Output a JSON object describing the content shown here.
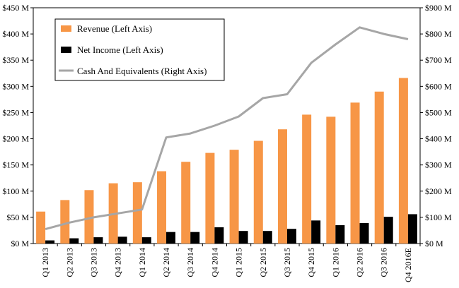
{
  "chart_data": {
    "type": "bar",
    "categories": [
      "Q1 2013",
      "Q2 2013",
      "Q3 2013",
      "Q4 2013",
      "Q1 2014",
      "Q2 2014",
      "Q3 2014",
      "Q4 2014",
      "Q1 2015",
      "Q2 2015",
      "Q3 2015",
      "Q4 2015",
      "Q1 2016",
      "Q2 2016",
      "Q3 2016",
      "Q4 2016E"
    ],
    "series": [
      {
        "name": "Revenue (Left Axis)",
        "kind": "bar",
        "axis": "left",
        "color": "#F79646",
        "values": [
          61,
          83,
          102,
          115,
          117,
          138,
          156,
          173,
          179,
          196,
          218,
          246,
          242,
          269,
          290,
          316
        ]
      },
      {
        "name": "Net Income (Left Axis)",
        "kind": "bar",
        "axis": "left",
        "color": "#000000",
        "values": [
          6,
          10,
          12,
          13,
          12,
          22,
          22,
          31,
          24,
          24,
          28,
          44,
          35,
          39,
          51,
          56
        ]
      },
      {
        "name": "Cash And Equivalents (Right Axis)",
        "kind": "line",
        "axis": "right",
        "color": "#A6A6A6",
        "values": [
          55,
          80,
          100,
          115,
          130,
          405,
          420,
          450,
          485,
          555,
          570,
          690,
          760,
          825,
          800,
          780
        ]
      }
    ],
    "left_axis": {
      "min": 0,
      "max": 450,
      "step": 50,
      "tick_labels": [
        "$0 M",
        "$50 M",
        "$100 M",
        "$150 M",
        "$200 M",
        "$250 M",
        "$300 M",
        "$350 M",
        "$400 M",
        "$450 M"
      ]
    },
    "right_axis": {
      "min": 0,
      "max": 900,
      "step": 100,
      "tick_labels": [
        "$0 M",
        "$100 M",
        "$200 M",
        "$300 M",
        "$400 M",
        "$500 M",
        "$600 M",
        "$700 M",
        "$800 M",
        "$900 M"
      ]
    },
    "legend_position": "top-left",
    "grid": false
  }
}
